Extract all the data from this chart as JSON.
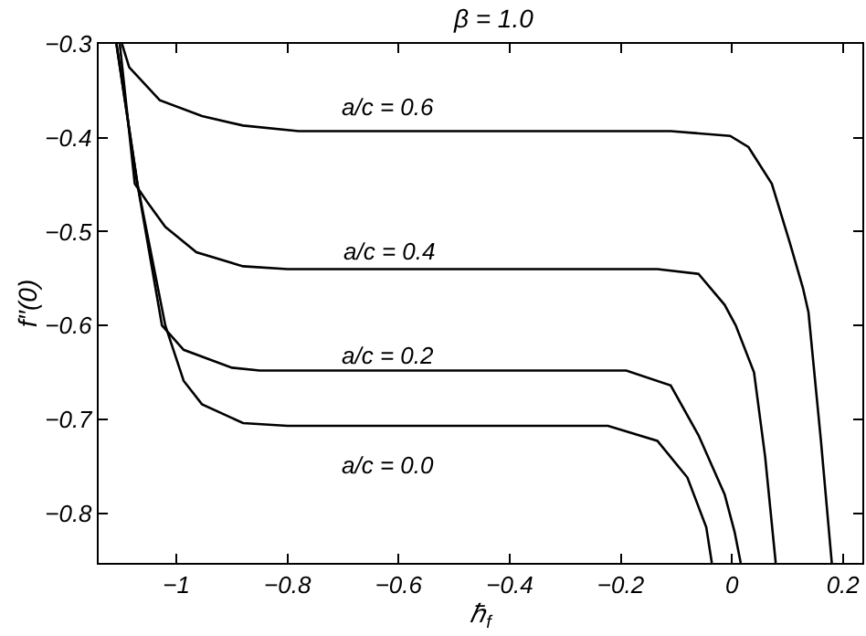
{
  "chart_data": {
    "type": "line",
    "title": "β = 1.0",
    "xlabel": "ℏ$_{f}$",
    "ylabel": "f′′(0)",
    "xlim": [
      -1.14,
      0.235
    ],
    "ylim": [
      -0.853,
      -0.3
    ],
    "xticks": [
      -1,
      -0.8,
      -0.6,
      -0.4,
      -0.2,
      0,
      0.2
    ],
    "yticks": [
      -0.8,
      -0.7,
      -0.6,
      -0.5,
      -0.4,
      -0.3
    ],
    "marker": "none",
    "line_style": "solid",
    "series": [
      {
        "color": "#000000",
        "x": [
          -1.098,
          -1.085,
          -1.03,
          -0.954,
          -0.88,
          -0.78,
          -0.6,
          -0.4,
          -0.2,
          -0.11,
          -0.003,
          0.03,
          0.072,
          0.105,
          0.128,
          0.138,
          0.16,
          0.18
        ],
        "values": [
          -0.3,
          -0.325,
          -0.36,
          -0.377,
          -0.387,
          -0.393,
          -0.393,
          -0.393,
          -0.393,
          -0.393,
          -0.398,
          -0.41,
          -0.449,
          -0.513,
          -0.56,
          -0.586,
          -0.72,
          -0.853
        ]
      },
      {
        "color": "#000000",
        "x": [
          -1.102,
          -1.075,
          -1.052,
          -1.02,
          -0.964,
          -0.88,
          -0.8,
          -0.6,
          -0.4,
          -0.2,
          -0.134,
          -0.06,
          -0.013,
          0.007,
          0.04,
          0.06,
          0.079
        ],
        "values": [
          -0.3,
          -0.449,
          -0.469,
          -0.495,
          -0.522,
          -0.537,
          -0.54,
          -0.54,
          -0.54,
          -0.54,
          -0.54,
          -0.545,
          -0.578,
          -0.6,
          -0.65,
          -0.74,
          -0.853
        ]
      },
      {
        "color": "#000000",
        "x": [
          -1.108,
          -1.07,
          -1.026,
          -0.987,
          -0.9,
          -0.85,
          -0.6,
          -0.4,
          -0.19,
          -0.11,
          -0.06,
          -0.013,
          0.005,
          0.016
        ],
        "values": [
          -0.3,
          -0.45,
          -0.6,
          -0.626,
          -0.645,
          -0.648,
          -0.648,
          -0.648,
          -0.648,
          -0.664,
          -0.717,
          -0.78,
          -0.82,
          -0.853
        ]
      },
      {
        "color": "#000000",
        "x": [
          -1.108,
          -1.07,
          -1.02,
          -0.987,
          -0.954,
          -0.88,
          -0.8,
          -0.6,
          -0.4,
          -0.223,
          -0.134,
          -0.08,
          -0.046,
          -0.036
        ],
        "values": [
          -0.3,
          -0.45,
          -0.6,
          -0.659,
          -0.684,
          -0.704,
          -0.707,
          -0.707,
          -0.707,
          -0.707,
          -0.723,
          -0.762,
          -0.815,
          -0.853
        ]
      }
    ],
    "annotations": [
      "a/c = 0.6",
      "a/c = 0.4",
      "a/c = 0.2",
      "a/c = 0.0"
    ]
  }
}
